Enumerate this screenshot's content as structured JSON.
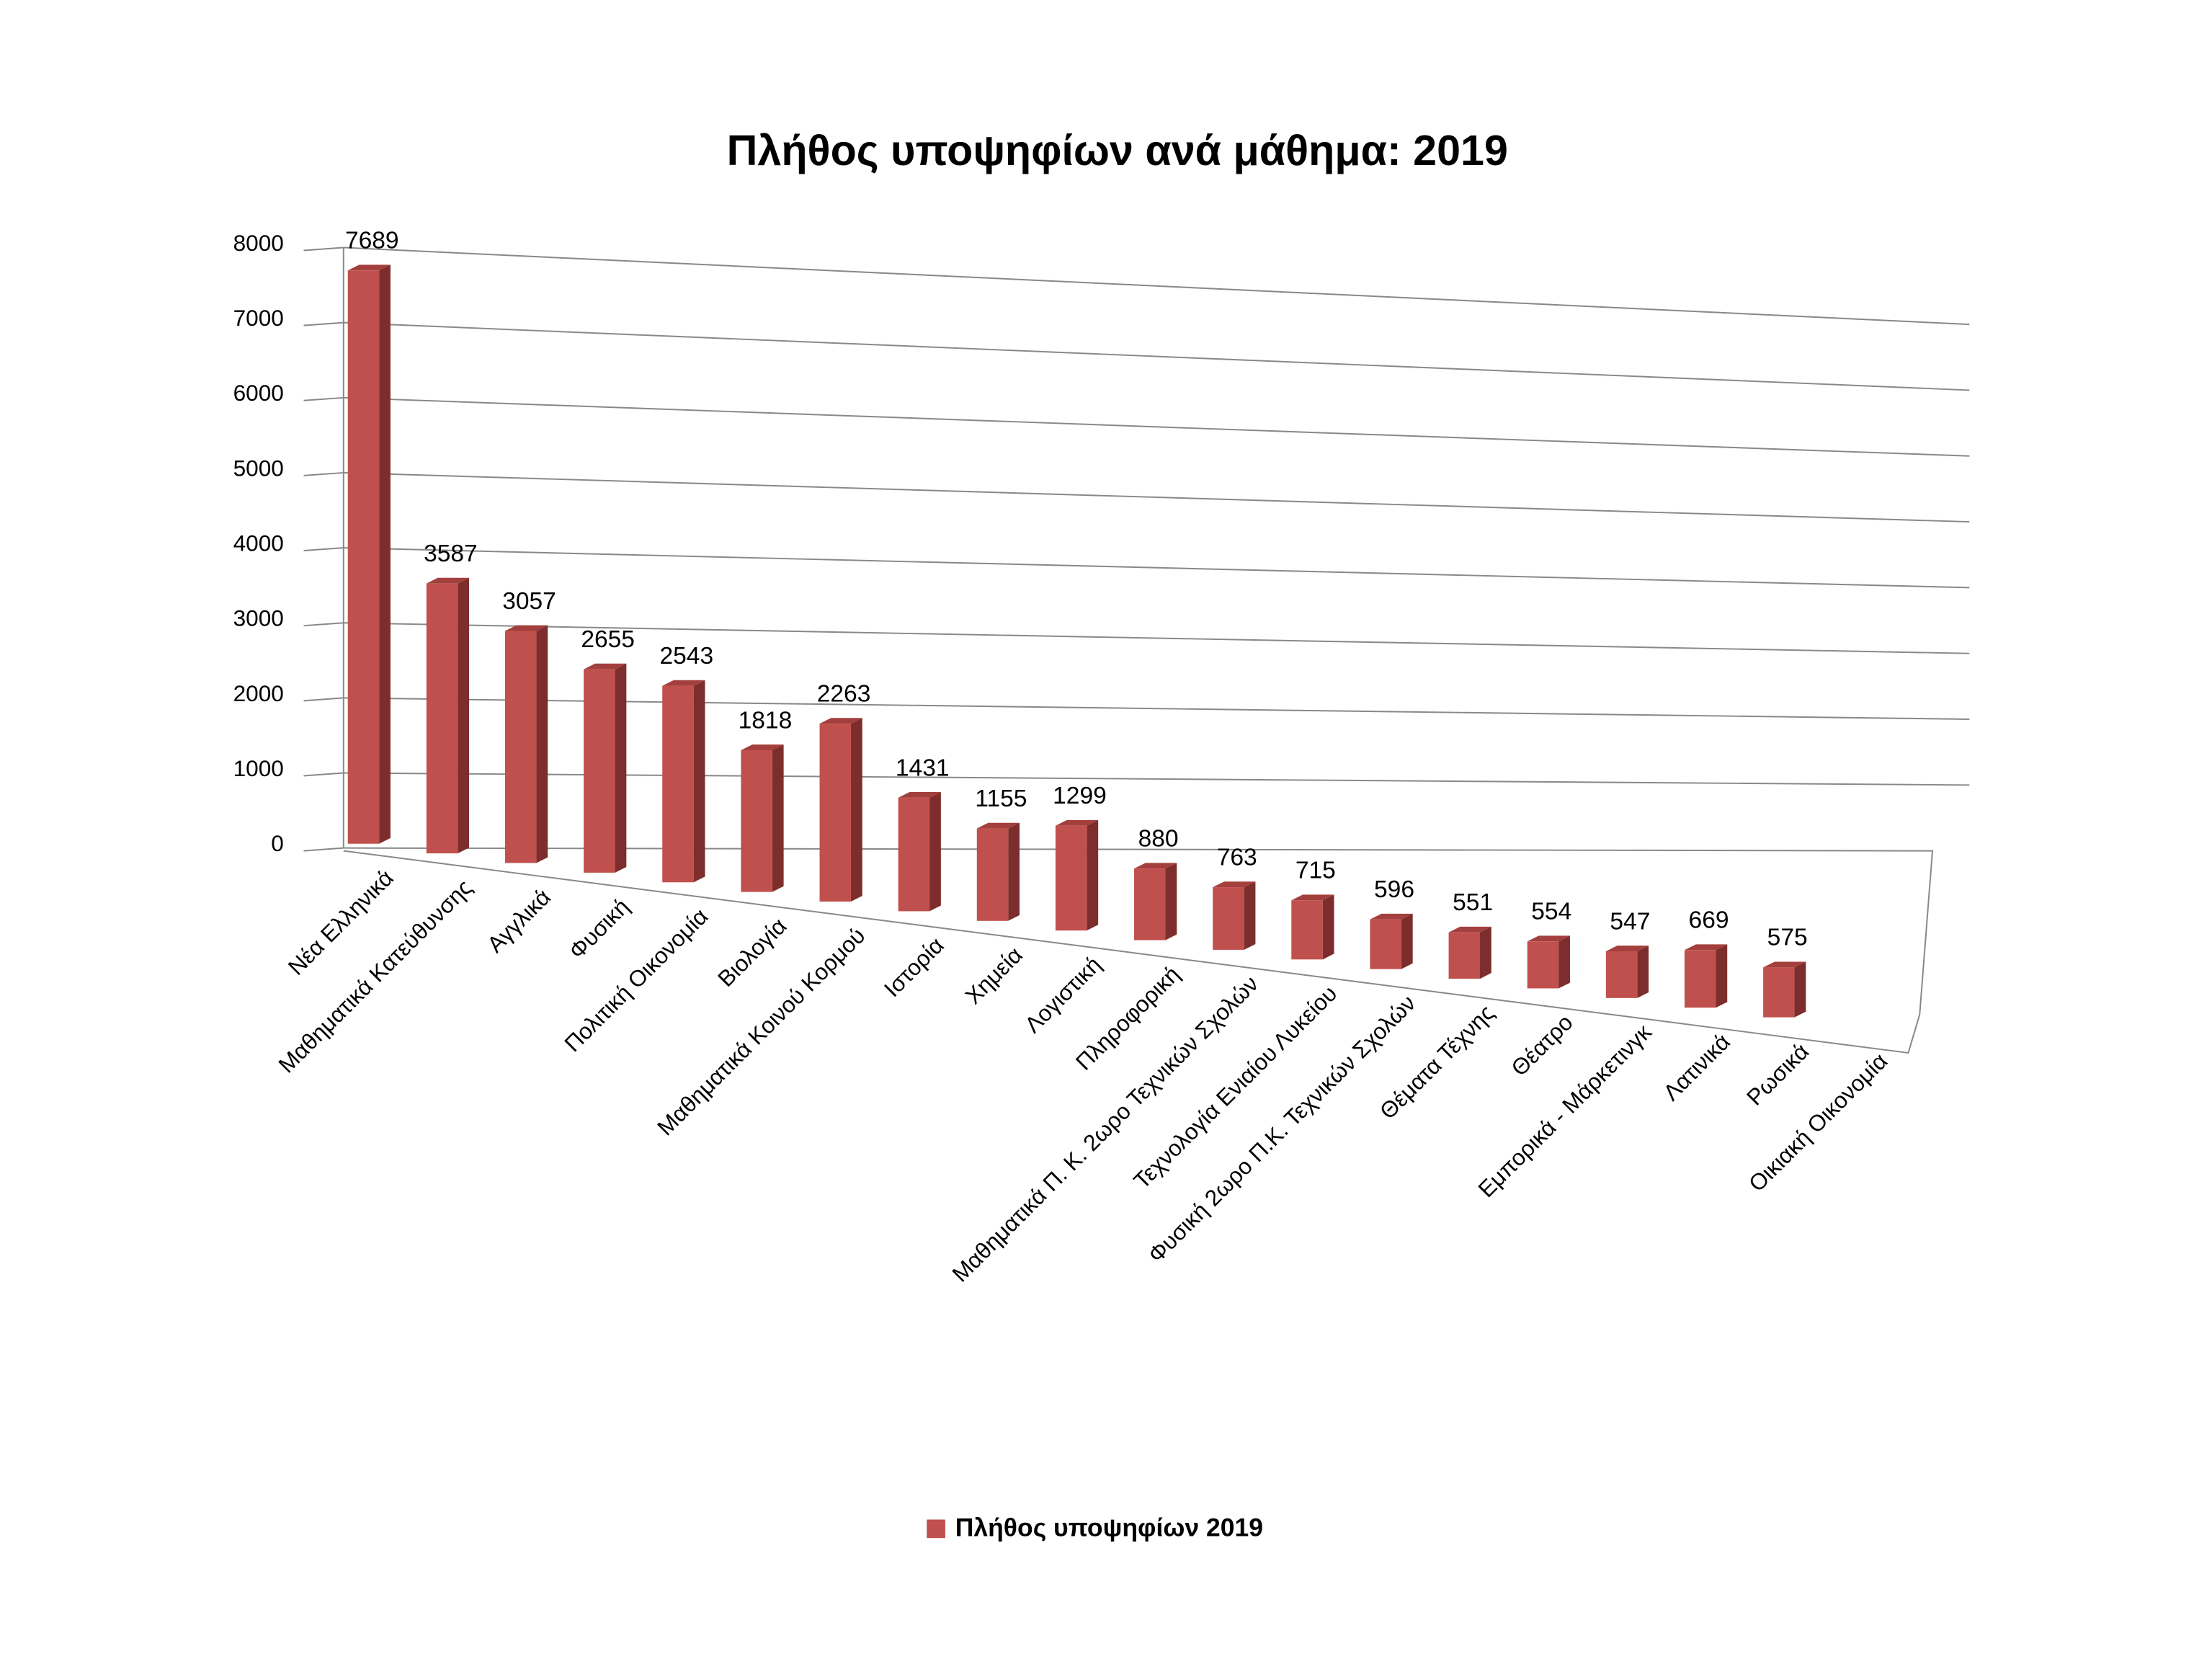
{
  "chart_data": {
    "type": "bar3d",
    "title": "Πλήθος υποψηφίων ανά μάθημα: 2019",
    "categories": [
      "Νέα Ελληνικά",
      "Μαθηματικά Κατεύθυνσης",
      "Αγγλικά",
      "Φυσική",
      "Πολιτική Οικονομία",
      "Βιολογία",
      "Μαθηματικά Κοινού Κορμού",
      "Ιστορία",
      "Χημεία",
      "Λογιστική",
      "Πληροφορική",
      "Μαθηματικά Π. Κ. 2ωρο Τεχνικών Σχολών",
      "Τεχνολογία Ενιαίου Λυκείου",
      "Φυσική 2ωρο Π.Κ. Τεχνικών Σχολών",
      "Θέματα Τέχνης",
      "Θέατρο",
      "Εμπορικά - Μάρκετινγκ",
      "Λατινικά",
      "Ρωσικά",
      "Οικιακή Οικονομία"
    ],
    "series": [
      {
        "name": "Πλήθος υποψηφίων 2019",
        "color": "#c0504d",
        "values": [
          7689,
          3587,
          3057,
          2655,
          2543,
          1818,
          2263,
          1431,
          1155,
          1299,
          880,
          763,
          715,
          596,
          551,
          554,
          547,
          669,
          575,
          null
        ]
      }
    ],
    "ylim": [
      0,
      8000
    ],
    "yticks": [
      0,
      1000,
      2000,
      3000,
      4000,
      5000,
      6000,
      7000,
      8000
    ],
    "grid": true,
    "legend": "bottom"
  }
}
